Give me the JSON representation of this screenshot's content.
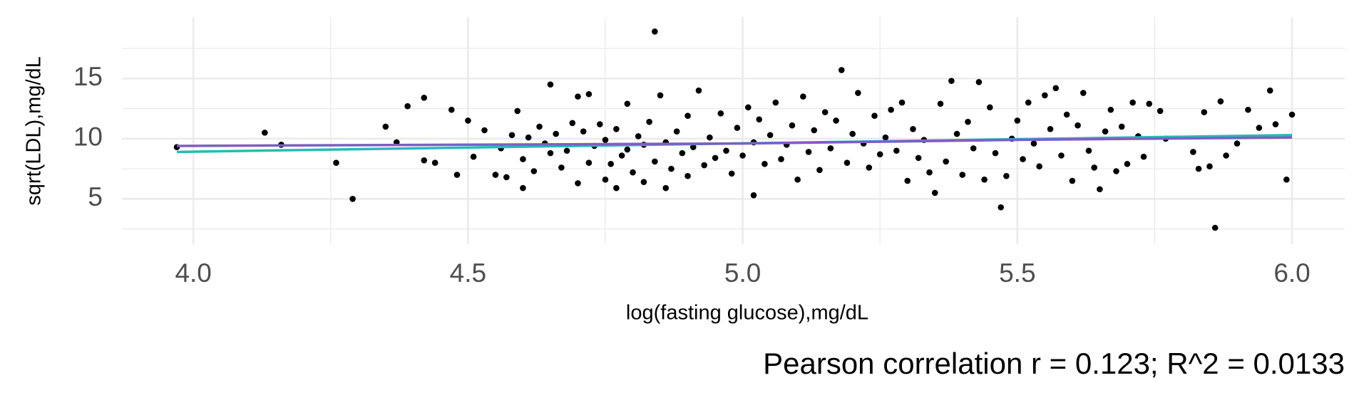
{
  "chart_data": {
    "type": "scatter",
    "xlabel": "log(fasting glucose),mg/dL",
    "ylabel": "sqrt(LDL),mg/dL",
    "annotation": "Pearson correlation r = 0.123; R^2 = 0.0133",
    "xlim": [
      3.87,
      6.096
    ],
    "ylim": [
      1.24,
      20.1
    ],
    "xticks": [
      {
        "value": 4,
        "label": "4.0"
      },
      4.5,
      {
        "value": 5,
        "label": "5.0"
      },
      5.5,
      {
        "value": 6,
        "label": "6.0"
      }
    ],
    "yticks": [
      5,
      10,
      15
    ],
    "xminorticks": [
      4.25,
      4.75,
      5.25,
      5.75
    ],
    "yminorticks": [
      2.5,
      7.5,
      12.5,
      17.5
    ],
    "grid": true,
    "points": {
      "color": "#000000",
      "x": [
        3.97,
        4.13,
        4.16,
        4.26,
        4.29,
        4.35,
        4.37,
        4.39,
        4.42,
        4.42,
        4.44,
        4.47,
        4.48,
        4.5,
        4.51,
        4.53,
        4.55,
        4.56,
        4.57,
        4.58,
        4.59,
        4.6,
        4.6,
        4.61,
        4.62,
        4.63,
        4.64,
        4.65,
        4.65,
        4.66,
        4.67,
        4.68,
        4.69,
        4.7,
        4.7,
        4.71,
        4.72,
        4.72,
        4.73,
        4.74,
        4.75,
        4.75,
        4.76,
        4.77,
        4.77,
        4.78,
        4.79,
        4.79,
        4.8,
        4.81,
        4.82,
        4.82,
        4.83,
        4.84,
        4.84,
        4.85,
        4.86,
        4.86,
        4.87,
        4.88,
        4.89,
        4.9,
        4.9,
        4.91,
        4.92,
        4.93,
        4.94,
        4.95,
        4.96,
        4.97,
        4.98,
        4.99,
        5.0,
        5.01,
        5.02,
        5.02,
        5.03,
        5.04,
        5.05,
        5.06,
        5.07,
        5.08,
        5.09,
        5.1,
        5.11,
        5.12,
        5.13,
        5.14,
        5.15,
        5.16,
        5.17,
        5.18,
        5.19,
        5.2,
        5.21,
        5.22,
        5.23,
        5.24,
        5.25,
        5.26,
        5.27,
        5.28,
        5.29,
        5.3,
        5.31,
        5.32,
        5.33,
        5.34,
        5.35,
        5.36,
        5.37,
        5.38,
        5.39,
        5.4,
        5.41,
        5.42,
        5.43,
        5.44,
        5.45,
        5.46,
        5.47,
        5.48,
        5.49,
        5.5,
        5.51,
        5.52,
        5.53,
        5.54,
        5.55,
        5.56,
        5.57,
        5.58,
        5.59,
        5.6,
        5.61,
        5.62,
        5.63,
        5.64,
        5.65,
        5.66,
        5.67,
        5.68,
        5.69,
        5.7,
        5.71,
        5.72,
        5.73,
        5.74,
        5.76,
        5.77,
        5.82,
        5.83,
        5.84,
        5.85,
        5.86,
        5.87,
        5.88,
        5.9,
        5.92,
        5.94,
        5.96,
        5.97,
        5.99,
        6.0
      ],
      "values": [
        9.3,
        10.5,
        9.5,
        8.0,
        5.0,
        11.0,
        9.7,
        12.7,
        13.4,
        8.2,
        8.0,
        12.4,
        7.0,
        11.5,
        8.5,
        10.7,
        7.0,
        9.2,
        6.8,
        10.3,
        12.3,
        5.9,
        8.3,
        10.1,
        7.3,
        11.0,
        9.6,
        14.5,
        8.8,
        10.4,
        7.6,
        9.0,
        11.3,
        6.3,
        13.5,
        10.6,
        8.0,
        13.7,
        9.4,
        11.2,
        6.6,
        9.9,
        7.9,
        10.8,
        5.9,
        8.6,
        12.9,
        9.1,
        7.2,
        10.2,
        6.4,
        9.5,
        11.4,
        18.9,
        8.1,
        13.6,
        5.9,
        9.7,
        7.5,
        10.6,
        8.8,
        11.9,
        6.9,
        9.3,
        14.0,
        7.8,
        10.1,
        8.4,
        12.1,
        9.0,
        7.1,
        10.9,
        8.6,
        12.6,
        5.3,
        9.7,
        11.6,
        7.9,
        10.3,
        13.0,
        8.3,
        9.5,
        11.1,
        6.6,
        13.5,
        8.9,
        10.7,
        7.4,
        12.2,
        9.2,
        11.5,
        15.7,
        8.0,
        10.4,
        13.8,
        9.6,
        7.6,
        11.9,
        8.7,
        10.1,
        12.4,
        9.0,
        13.0,
        6.5,
        10.8,
        8.4,
        9.9,
        7.2,
        5.5,
        12.9,
        8.1,
        14.8,
        10.4,
        7.0,
        11.4,
        9.2,
        14.7,
        6.6,
        12.6,
        8.8,
        4.3,
        6.9,
        10.0,
        11.5,
        8.3,
        13.0,
        9.6,
        7.7,
        13.6,
        10.8,
        14.2,
        8.6,
        12.0,
        6.5,
        11.1,
        13.8,
        9.0,
        7.6,
        5.8,
        10.6,
        12.4,
        7.3,
        11.0,
        7.9,
        13.0,
        10.2,
        8.5,
        12.9,
        12.3,
        10.0,
        8.9,
        7.5,
        12.2,
        7.7,
        2.6,
        13.1,
        8.6,
        9.6,
        12.4,
        10.9,
        14.0,
        11.2,
        6.6,
        12.0
      ]
    },
    "lines": [
      {
        "color": "#2bb8b8",
        "x": [
          3.97,
          6.0
        ],
        "values": [
          8.9,
          10.3
        ]
      },
      {
        "color": "#7b5fc4",
        "x": [
          3.97,
          4.5,
          5.0,
          5.5,
          6.0
        ],
        "values": [
          9.4,
          9.5,
          9.6,
          9.9,
          10.1
        ]
      }
    ]
  }
}
